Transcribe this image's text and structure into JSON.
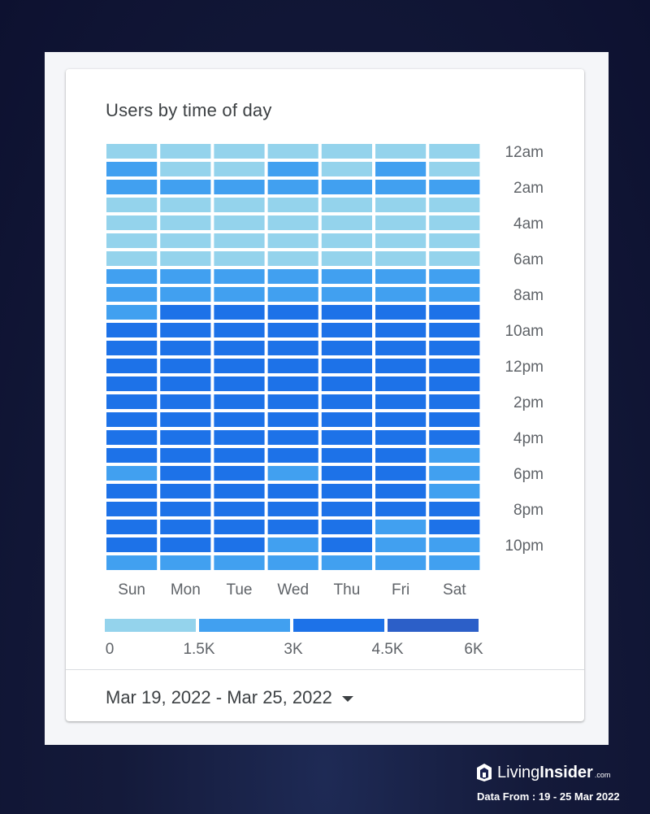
{
  "brand": {
    "name_light": "Living",
    "name_bold": "Insider",
    "suffix": ".com",
    "source_note": "Data From : 19 - 25 Mar 2022"
  },
  "colors": {
    "scale": [
      "#94d3ec",
      "#41a0f0",
      "#1d72e8",
      "#2c5fc8"
    ]
  },
  "card": {
    "title": "Users by time of day",
    "date_range": "Mar 19, 2022 - Mar 25, 2022"
  },
  "chart_data": {
    "type": "heatmap",
    "title": "Users by time of day",
    "x_categories": [
      "Sun",
      "Mon",
      "Tue",
      "Wed",
      "Thu",
      "Fri",
      "Sat"
    ],
    "y_categories": [
      "12am",
      "1am",
      "2am",
      "3am",
      "4am",
      "5am",
      "6am",
      "7am",
      "8am",
      "9am",
      "10am",
      "11am",
      "12pm",
      "1pm",
      "2pm",
      "3pm",
      "4pm",
      "5pm",
      "6pm",
      "7pm",
      "8pm",
      "9pm",
      "10pm",
      "11pm"
    ],
    "y_tick_labels": [
      "12am",
      "2am",
      "4am",
      "6am",
      "8am",
      "10am",
      "12pm",
      "2pm",
      "4pm",
      "6pm",
      "8pm",
      "10pm"
    ],
    "values": [
      [
        1000,
        1000,
        1000,
        1000,
        1000,
        1000,
        1000
      ],
      [
        2500,
        1200,
        1200,
        2800,
        1200,
        2800,
        1200
      ],
      [
        2000,
        2000,
        2000,
        2000,
        2000,
        2000,
        2000
      ],
      [
        1200,
        1200,
        1200,
        1200,
        1200,
        1200,
        1200
      ],
      [
        1000,
        1000,
        1000,
        1000,
        1000,
        1000,
        1000
      ],
      [
        1000,
        1000,
        1000,
        1000,
        1000,
        1000,
        1000
      ],
      [
        1000,
        1000,
        1000,
        1000,
        1000,
        1000,
        1000
      ],
      [
        2000,
        2000,
        2000,
        2000,
        2000,
        2000,
        2000
      ],
      [
        2200,
        2200,
        2200,
        2200,
        2200,
        2200,
        2200
      ],
      [
        2800,
        3600,
        3600,
        3600,
        3600,
        3600,
        3600
      ],
      [
        3800,
        3800,
        3800,
        3800,
        3800,
        3800,
        3800
      ],
      [
        4000,
        4000,
        4000,
        4000,
        4000,
        4000,
        4000
      ],
      [
        4000,
        4000,
        4000,
        4000,
        4000,
        4000,
        4000
      ],
      [
        4000,
        4000,
        4000,
        4000,
        4000,
        4000,
        4000
      ],
      [
        4000,
        4000,
        4000,
        4000,
        4000,
        4000,
        4000
      ],
      [
        4000,
        4000,
        4000,
        4000,
        4000,
        4000,
        4000
      ],
      [
        4000,
        4000,
        4000,
        4000,
        4000,
        4000,
        4000
      ],
      [
        3800,
        3800,
        3800,
        3800,
        3800,
        3800,
        2800
      ],
      [
        2800,
        3800,
        3800,
        2800,
        3800,
        3800,
        2800
      ],
      [
        3800,
        3800,
        3800,
        3800,
        3800,
        3800,
        2800
      ],
      [
        3800,
        3800,
        3800,
        3800,
        3800,
        3800,
        3800
      ],
      [
        3800,
        3800,
        3800,
        3800,
        3800,
        2800,
        3800
      ],
      [
        3800,
        3800,
        3800,
        2800,
        3800,
        2800,
        2800
      ],
      [
        2800,
        2800,
        2800,
        2800,
        2800,
        2800,
        2800
      ]
    ],
    "color_scale": {
      "colors": [
        "#94d3ec",
        "#41a0f0",
        "#1d72e8",
        "#2c5fc8"
      ],
      "tick_labels": [
        "0",
        "1.5K",
        "3K",
        "4.5K",
        "6K"
      ],
      "range": [
        0,
        6000
      ]
    }
  }
}
